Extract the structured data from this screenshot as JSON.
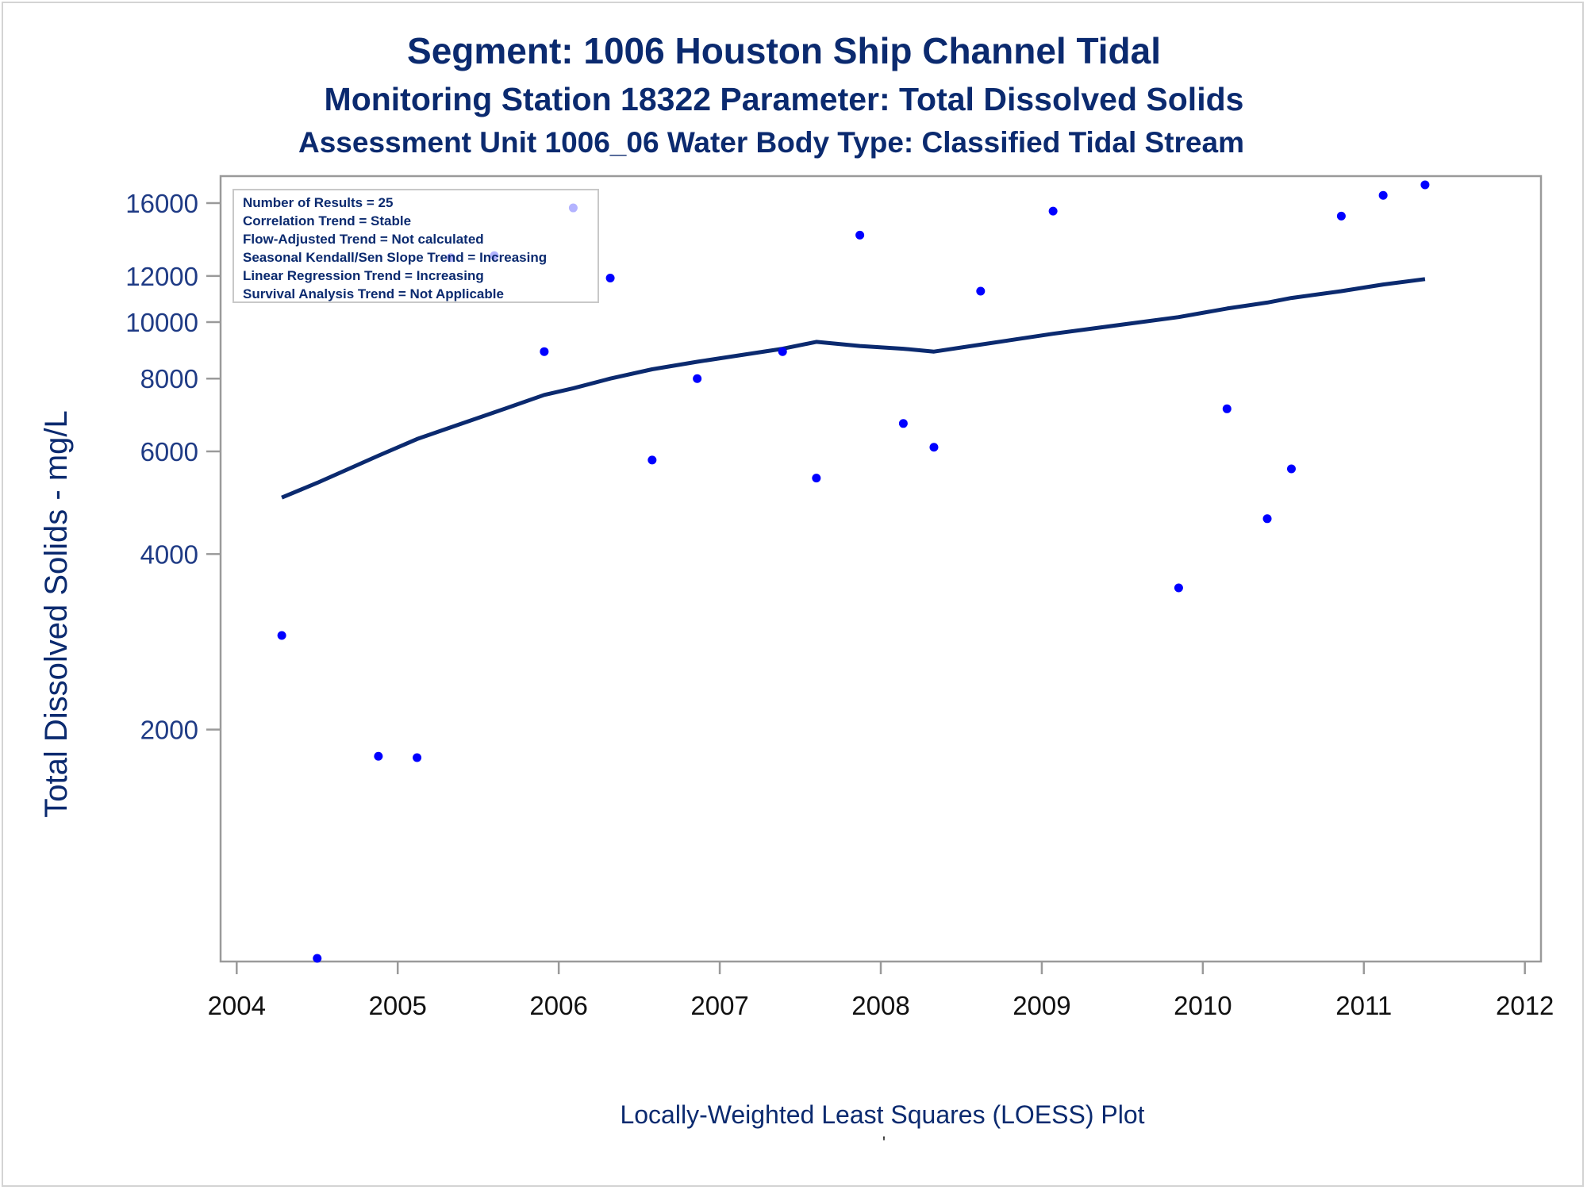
{
  "chart_data": {
    "type": "scatter",
    "title": "Segment: 1006  Houston Ship Channel Tidal",
    "subtitle": "Monitoring Station 18322 Parameter: Total Dissolved Solids",
    "subtitle2": "Assessment Unit 1006_06   Water Body Type: Classified Tidal Stream",
    "xlabel": "Locally-Weighted Least Squares (LOESS) Plot",
    "ylabel": "Total Dissolved Solids - mg/L",
    "footnote": "'",
    "y_scale": "log",
    "xlim": [
      2003.9,
      2012.1
    ],
    "ylim": [
      800,
      17800
    ],
    "x_ticks": [
      "2004",
      "2005",
      "2006",
      "2007",
      "2008",
      "2009",
      "2010",
      "2011",
      "2012"
    ],
    "y_ticks": [
      "2000",
      "4000",
      "6000",
      "8000",
      "10000",
      "12000",
      "16000"
    ],
    "grid": false,
    "legend": "none",
    "stats_box": {
      "placement": "top-left",
      "lines": [
        "Number of Results = 25",
        "Correlation Trend = Stable",
        "Flow-Adjusted Trend = Not calculated",
        "Seasonal Kendall/Sen Slope Trend = Increasing",
        "Linear Regression Trend = Increasing",
        "Survival Analysis Trend = Not Applicable"
      ]
    },
    "series": [
      {
        "kind": "points",
        "color": "#0000ff",
        "points": [
          {
            "x": 2004.28,
            "y": 2900
          },
          {
            "x": 2004.5,
            "y": 810
          },
          {
            "x": 2004.88,
            "y": 1800
          },
          {
            "x": 2005.12,
            "y": 1790
          },
          {
            "x": 2005.33,
            "y": 12900
          },
          {
            "x": 2005.6,
            "y": 13000
          },
          {
            "x": 2005.91,
            "y": 8900
          },
          {
            "x": 2006.09,
            "y": 15700
          },
          {
            "x": 2006.32,
            "y": 11900
          },
          {
            "x": 2006.58,
            "y": 5800
          },
          {
            "x": 2006.86,
            "y": 8000
          },
          {
            "x": 2007.39,
            "y": 8900
          },
          {
            "x": 2007.6,
            "y": 5400
          },
          {
            "x": 2007.87,
            "y": 14100
          },
          {
            "x": 2008.14,
            "y": 6700
          },
          {
            "x": 2008.33,
            "y": 6100
          },
          {
            "x": 2008.62,
            "y": 11300
          },
          {
            "x": 2009.07,
            "y": 15500
          },
          {
            "x": 2009.85,
            "y": 3500
          },
          {
            "x": 2010.15,
            "y": 7100
          },
          {
            "x": 2010.4,
            "y": 4600
          },
          {
            "x": 2010.55,
            "y": 5600
          },
          {
            "x": 2010.86,
            "y": 15200
          },
          {
            "x": 2011.12,
            "y": 16500
          },
          {
            "x": 2011.38,
            "y": 17200
          }
        ]
      },
      {
        "kind": "loess",
        "color": "#0b2a6f",
        "points": [
          {
            "x": 2004.28,
            "y": 5000
          },
          {
            "x": 2004.5,
            "y": 5300
          },
          {
            "x": 2004.88,
            "y": 5900
          },
          {
            "x": 2005.12,
            "y": 6300
          },
          {
            "x": 2005.33,
            "y": 6600
          },
          {
            "x": 2005.6,
            "y": 7000
          },
          {
            "x": 2005.91,
            "y": 7500
          },
          {
            "x": 2006.09,
            "y": 7700
          },
          {
            "x": 2006.32,
            "y": 8000
          },
          {
            "x": 2006.58,
            "y": 8300
          },
          {
            "x": 2006.86,
            "y": 8550
          },
          {
            "x": 2007.39,
            "y": 9000
          },
          {
            "x": 2007.6,
            "y": 9250
          },
          {
            "x": 2007.87,
            "y": 9100
          },
          {
            "x": 2008.14,
            "y": 9000
          },
          {
            "x": 2008.33,
            "y": 8900
          },
          {
            "x": 2008.62,
            "y": 9150
          },
          {
            "x": 2009.07,
            "y": 9550
          },
          {
            "x": 2009.85,
            "y": 10200
          },
          {
            "x": 2010.15,
            "y": 10550
          },
          {
            "x": 2010.4,
            "y": 10800
          },
          {
            "x": 2010.55,
            "y": 11000
          },
          {
            "x": 2010.86,
            "y": 11300
          },
          {
            "x": 2011.12,
            "y": 11600
          },
          {
            "x": 2011.38,
            "y": 11850
          }
        ]
      }
    ]
  }
}
